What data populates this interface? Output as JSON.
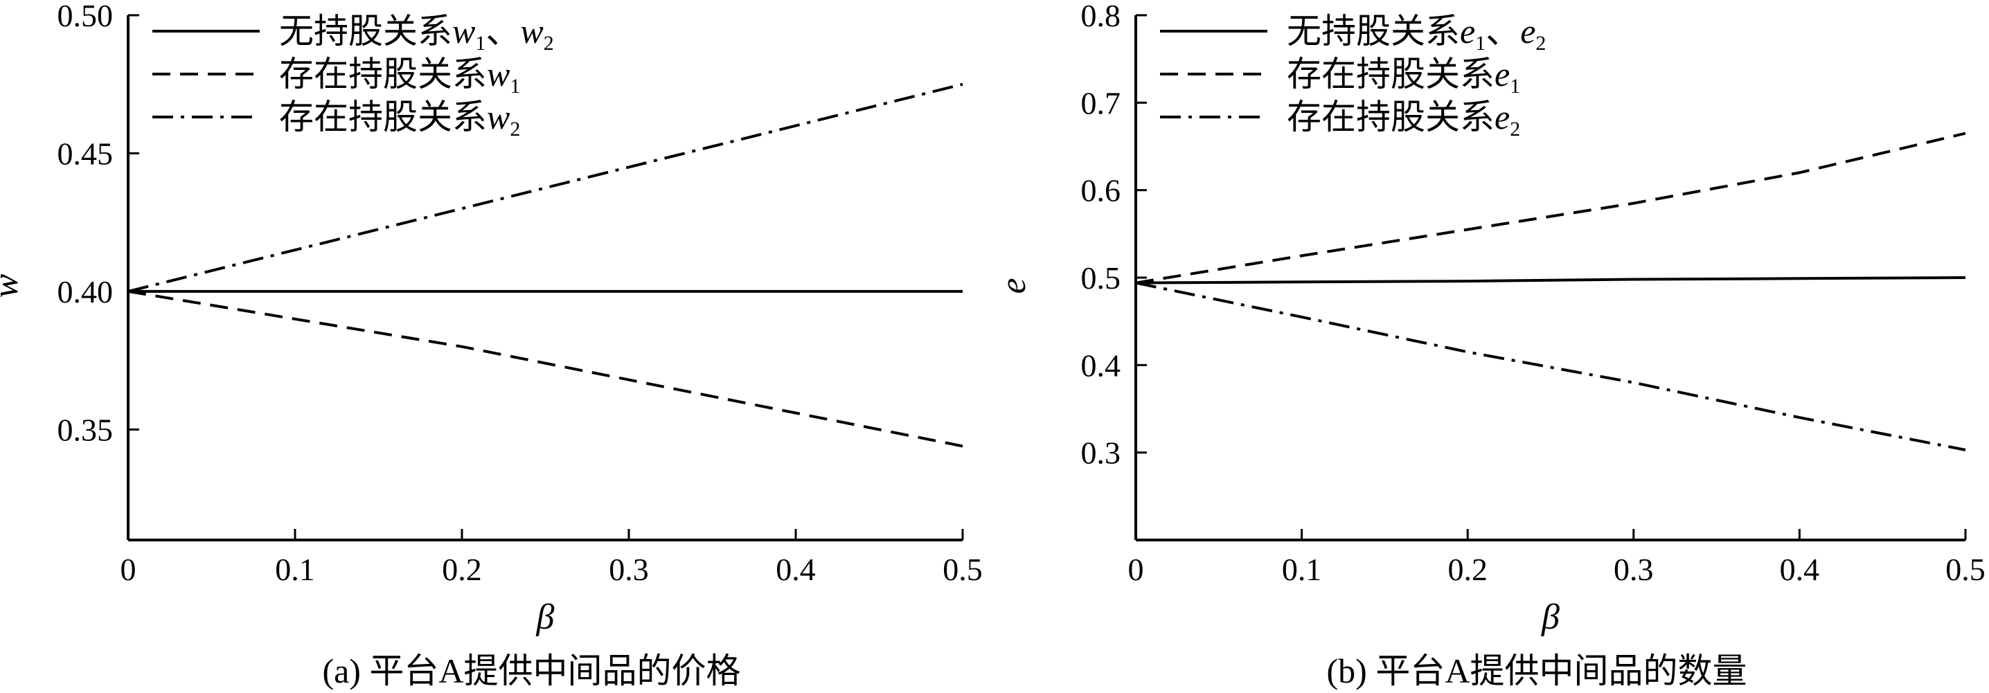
{
  "chart_data": [
    {
      "type": "line",
      "caption": "(a) 平台A提供中间品的价格",
      "xlabel": "β",
      "ylabel": "w",
      "xlim": [
        0,
        0.5
      ],
      "ylim": [
        0.31,
        0.5
      ],
      "xticks": [
        0,
        0.1,
        0.2,
        0.3,
        0.4,
        0.5
      ],
      "xtick_labels": [
        "0",
        "0.1",
        "0.2",
        "0.3",
        "0.4",
        "0.5"
      ],
      "yticks": [
        0.35,
        0.4,
        0.45,
        0.5
      ],
      "ytick_labels": [
        "0.35",
        "0.40",
        "0.45",
        "0.50"
      ],
      "grid": false,
      "legend_position": "top-left",
      "series": [
        {
          "name": "无持股关系w₁、w₂",
          "style": "solid",
          "x": [
            0,
            0.1,
            0.2,
            0.3,
            0.4,
            0.5
          ],
          "y": [
            0.4,
            0.4,
            0.4,
            0.4,
            0.4,
            0.4
          ]
        },
        {
          "name": "存在持股关系w₁",
          "style": "dashed",
          "x": [
            0,
            0.1,
            0.2,
            0.3,
            0.4,
            0.5
          ],
          "y": [
            0.4,
            0.39,
            0.38,
            0.368,
            0.356,
            0.344
          ]
        },
        {
          "name": "存在持股关系w₂",
          "style": "dashdot",
          "x": [
            0,
            0.1,
            0.2,
            0.3,
            0.4,
            0.5
          ],
          "y": [
            0.4,
            0.415,
            0.43,
            0.445,
            0.46,
            0.475
          ]
        }
      ]
    },
    {
      "type": "line",
      "caption": "(b) 平台A提供中间品的数量",
      "xlabel": "β",
      "ylabel": "e",
      "xlim": [
        0,
        0.5
      ],
      "ylim": [
        0.2,
        0.8
      ],
      "xticks": [
        0,
        0.1,
        0.2,
        0.3,
        0.4,
        0.5
      ],
      "xtick_labels": [
        "0",
        "0.1",
        "0.2",
        "0.3",
        "0.4",
        "0.5"
      ],
      "yticks": [
        0.3,
        0.4,
        0.5,
        0.6,
        0.7,
        0.8
      ],
      "ytick_labels": [
        "0.3",
        "0.4",
        "0.5",
        "0.6",
        "0.7",
        "0.8"
      ],
      "grid": false,
      "legend_position": "top-left",
      "series": [
        {
          "name": "无持股关系e₁、e₂",
          "style": "solid",
          "x": [
            0,
            0.1,
            0.2,
            0.3,
            0.4,
            0.5
          ],
          "y": [
            0.494,
            0.495,
            0.496,
            0.498,
            0.499,
            0.5
          ]
        },
        {
          "name": "存在持股关系e₁",
          "style": "dashed",
          "x": [
            0,
            0.1,
            0.2,
            0.3,
            0.4,
            0.5
          ],
          "y": [
            0.494,
            0.525,
            0.555,
            0.585,
            0.62,
            0.665
          ]
        },
        {
          "name": "存在持股关系e₂",
          "style": "dashdot",
          "x": [
            0,
            0.1,
            0.2,
            0.3,
            0.4,
            0.5
          ],
          "y": [
            0.494,
            0.455,
            0.415,
            0.38,
            0.34,
            0.303
          ]
        }
      ]
    }
  ]
}
